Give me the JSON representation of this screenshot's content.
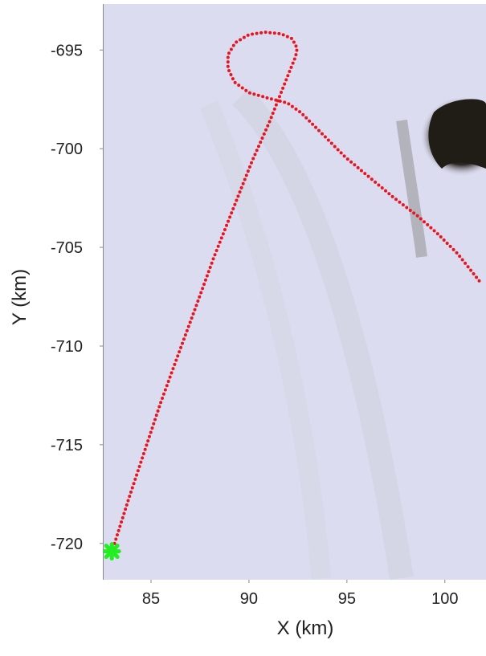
{
  "chart_data": {
    "type": "line",
    "xlabel": "X (km)",
    "ylabel": "Y (km)",
    "xlim": [
      82.54,
      102.1
    ],
    "ylim": [
      -721.84,
      -692.67
    ],
    "xticks": [
      85,
      90,
      95,
      100
    ],
    "yticks": [
      -720,
      -715,
      -710,
      -705,
      -700,
      -695
    ],
    "series": [
      {
        "color": "#e8141e",
        "marker": "dot",
        "x": [
          83.07,
          83.85,
          84.67,
          85.49,
          86.39,
          87.3,
          88.2,
          89.18,
          90.16,
          91.07,
          91.64,
          92.05,
          92.38,
          92.46,
          92.21,
          91.64,
          90.82,
          90.0,
          89.3,
          88.93,
          88.93,
          89.26,
          90.0,
          91.02,
          91.97,
          92.66,
          93.69,
          94.92,
          96.15,
          97.38,
          98.61,
          99.63,
          100.66,
          101.8
        ],
        "values": [
          -720.22,
          -717.78,
          -715.33,
          -712.88,
          -710.43,
          -707.98,
          -705.53,
          -703.08,
          -700.63,
          -698.59,
          -697.16,
          -696.14,
          -695.33,
          -694.92,
          -694.43,
          -694.18,
          -694.1,
          -694.22,
          -694.63,
          -695.24,
          -695.94,
          -696.63,
          -697.16,
          -697.45,
          -697.69,
          -698.18,
          -699.2,
          -700.43,
          -701.45,
          -702.47,
          -703.41,
          -704.31,
          -705.33,
          -706.76
        ]
      },
      {
        "color": "#22ee22",
        "marker": "cross",
        "x": [
          83.0
        ],
        "values": [
          -720.4
        ]
      }
    ]
  }
}
